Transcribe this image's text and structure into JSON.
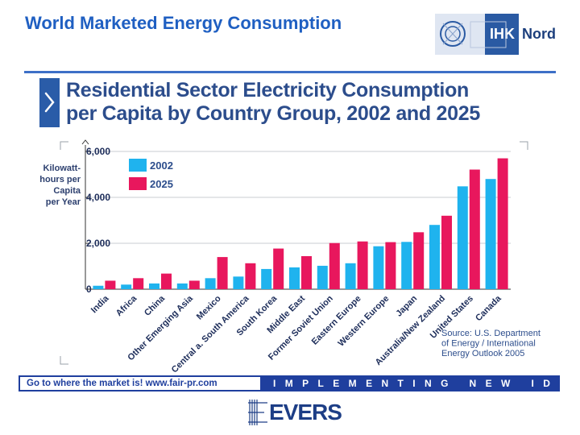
{
  "header": {
    "title": "World Marketed Energy Consumption",
    "logo_primary": "IHK",
    "logo_secondary": "Nord"
  },
  "chart_data": {
    "type": "bar",
    "title": [
      "Residential Sector Electricity Consumption",
      "per Capita by Country Group, 2002 and 2025"
    ],
    "ylabel": [
      "Kilowatt-",
      "hours per",
      "Capita",
      "per Year"
    ],
    "ylim": [
      0,
      6000
    ],
    "yticks": [
      0,
      2000,
      4000,
      6000
    ],
    "ytick_labels": [
      "0",
      "2,000",
      "4,000",
      "6,000"
    ],
    "grid": true,
    "legend_position": "top-left",
    "categories": [
      "India",
      "Africa",
      "China",
      "Other Emerging Asia",
      "Mexico",
      "Central a. South America",
      "South Korea",
      "Middle East",
      "Former Soviet Union",
      "Eastern Europe",
      "Western Europe",
      "Japan",
      "Australia/New Zealand",
      "United States",
      "Canada"
    ],
    "series": [
      {
        "name": "2002",
        "color": "#1fb3ee",
        "values": [
          150,
          200,
          250,
          250,
          480,
          550,
          880,
          950,
          1020,
          1130,
          1870,
          2060,
          2800,
          4480,
          4800
        ]
      },
      {
        "name": "2025",
        "color": "#e8175d",
        "values": [
          370,
          480,
          680,
          370,
          1400,
          1130,
          1770,
          1440,
          2010,
          2080,
          2050,
          2480,
          3200,
          5210,
          5700
        ]
      }
    ],
    "source": [
      "Source: U.S. Department",
      "of Energy / International",
      "Energy Outlook 2005"
    ]
  },
  "footer": {
    "left_text": "Go to where the market is!   www.fair-pr.com",
    "right_text": "IMPLEMENTING NEW IDEAS",
    "brand": "EVERS"
  }
}
